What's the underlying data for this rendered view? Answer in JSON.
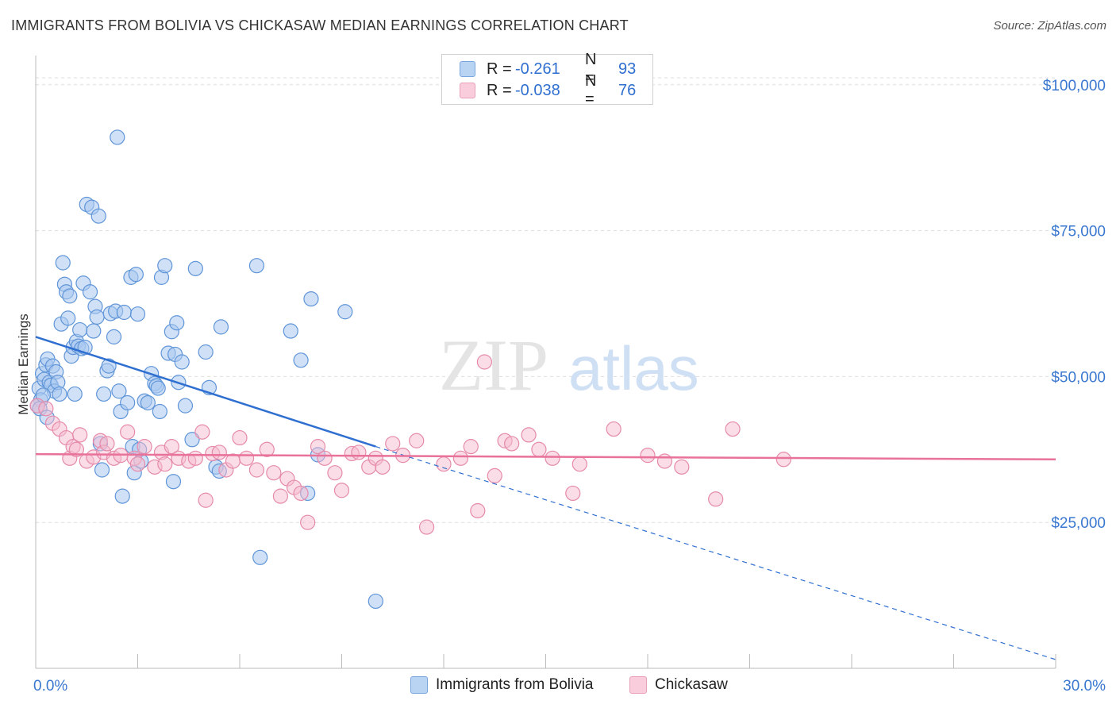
{
  "header": {
    "title": "IMMIGRANTS FROM BOLIVIA VS CHICKASAW MEDIAN EARNINGS CORRELATION CHART",
    "source": "Source: ZipAtlas.com"
  },
  "watermark": {
    "zip": "ZIP",
    "atlas": "atlas"
  },
  "legend_top": {
    "rows": [
      {
        "r_label": "R =",
        "r_value": "-0.261",
        "n_label": "N =",
        "n_value": "93"
      },
      {
        "r_label": "R =",
        "r_value": "-0.038",
        "n_label": "N =",
        "n_value": "76"
      }
    ]
  },
  "legend_bottom": {
    "items": [
      {
        "label": "Immigrants from Bolivia"
      },
      {
        "label": "Chickasaw"
      }
    ]
  },
  "colors": {
    "blue_fill": "#a9c8f0",
    "blue_stroke": "#5f95d8",
    "blue_line": "#2f6fd0",
    "pink_fill": "#f6bcd0",
    "pink_stroke": "#e58aaa",
    "pink_line": "#e8729a",
    "axis_text": "#3a78d0",
    "grid": "#dddddd"
  },
  "chart_data": {
    "type": "scatter",
    "title": "IMMIGRANTS FROM BOLIVIA VS CHICKASAW MEDIAN EARNINGS CORRELATION CHART",
    "xlabel": "",
    "ylabel": "Median Earnings",
    "xlim": [
      0,
      30
    ],
    "ylim": [
      0,
      105000
    ],
    "x_tick_labels": [
      "0.0%",
      "30.0%"
    ],
    "y_ticks": [
      25000,
      50000,
      75000,
      100000
    ],
    "y_tick_labels": [
      "$25,000",
      "$50,000",
      "$75,000",
      "$100,000"
    ],
    "grid": true,
    "legend_placement": "top-center",
    "series": [
      {
        "name": "Immigrants from Bolivia",
        "r": -0.261,
        "n": 93,
        "trend": {
          "x0": 0,
          "y0": 56800,
          "x1": 10,
          "y1": 38000,
          "dashed_to_x": 30,
          "dashed_to_y": 1500
        },
        "points": [
          [
            0.1,
            48000
          ],
          [
            0.15,
            46000
          ],
          [
            0.2,
            50500
          ],
          [
            0.25,
            49500
          ],
          [
            0.3,
            52000
          ],
          [
            0.35,
            53000
          ],
          [
            0.4,
            49000
          ],
          [
            0.45,
            48500
          ],
          [
            0.5,
            51800
          ],
          [
            0.55,
            47500
          ],
          [
            0.6,
            50800
          ],
          [
            0.65,
            49000
          ],
          [
            0.7,
            47000
          ],
          [
            0.75,
            59000
          ],
          [
            0.8,
            69500
          ],
          [
            0.85,
            65800
          ],
          [
            0.9,
            64500
          ],
          [
            0.95,
            60000
          ],
          [
            1.0,
            63800
          ],
          [
            1.05,
            53500
          ],
          [
            1.1,
            55000
          ],
          [
            1.15,
            47000
          ],
          [
            1.2,
            56000
          ],
          [
            1.25,
            55200
          ],
          [
            1.3,
            58000
          ],
          [
            1.35,
            54800
          ],
          [
            1.4,
            66000
          ],
          [
            1.45,
            55000
          ],
          [
            1.5,
            79500
          ],
          [
            1.6,
            64500
          ],
          [
            1.65,
            79000
          ],
          [
            1.7,
            57800
          ],
          [
            1.75,
            62000
          ],
          [
            1.8,
            60200
          ],
          [
            1.85,
            77500
          ],
          [
            1.9,
            38500
          ],
          [
            1.95,
            34000
          ],
          [
            2.0,
            47000
          ],
          [
            2.1,
            51000
          ],
          [
            2.15,
            51800
          ],
          [
            2.2,
            60800
          ],
          [
            2.3,
            56800
          ],
          [
            2.35,
            61200
          ],
          [
            2.4,
            91000
          ],
          [
            2.45,
            47500
          ],
          [
            2.5,
            44000
          ],
          [
            2.55,
            29500
          ],
          [
            2.6,
            61000
          ],
          [
            2.7,
            45500
          ],
          [
            2.8,
            67000
          ],
          [
            2.85,
            38000
          ],
          [
            2.9,
            33500
          ],
          [
            2.95,
            67500
          ],
          [
            3.0,
            60700
          ],
          [
            3.05,
            37500
          ],
          [
            3.1,
            35500
          ],
          [
            3.2,
            45800
          ],
          [
            3.3,
            45500
          ],
          [
            3.4,
            50500
          ],
          [
            3.5,
            48800
          ],
          [
            3.55,
            48400
          ],
          [
            3.6,
            48000
          ],
          [
            3.65,
            44000
          ],
          [
            3.7,
            67000
          ],
          [
            3.8,
            69000
          ],
          [
            3.9,
            54000
          ],
          [
            4.0,
            57700
          ],
          [
            4.05,
            32000
          ],
          [
            4.1,
            53800
          ],
          [
            4.15,
            59200
          ],
          [
            4.2,
            49000
          ],
          [
            4.3,
            52500
          ],
          [
            4.4,
            45000
          ],
          [
            4.6,
            39200
          ],
          [
            4.7,
            68500
          ],
          [
            5.0,
            54200
          ],
          [
            5.1,
            48100
          ],
          [
            5.3,
            34500
          ],
          [
            5.4,
            33800
          ],
          [
            5.45,
            58500
          ],
          [
            6.5,
            69000
          ],
          [
            6.6,
            19000
          ],
          [
            7.5,
            57800
          ],
          [
            7.8,
            52800
          ],
          [
            8.0,
            30000
          ],
          [
            8.1,
            63300
          ],
          [
            8.3,
            36600
          ],
          [
            9.1,
            61100
          ],
          [
            10.0,
            11500
          ],
          [
            0.05,
            45000
          ],
          [
            0.12,
            44500
          ],
          [
            0.22,
            46800
          ],
          [
            0.33,
            43000
          ]
        ]
      },
      {
        "name": "Chickasaw",
        "r": -0.038,
        "n": 76,
        "trend": {
          "x0": 0,
          "y0": 36700,
          "x1": 30,
          "y1": 35800
        },
        "points": [
          [
            0.05,
            45000
          ],
          [
            0.3,
            44500
          ],
          [
            0.5,
            42000
          ],
          [
            0.7,
            41000
          ],
          [
            0.9,
            39500
          ],
          [
            1.0,
            36000
          ],
          [
            1.1,
            38000
          ],
          [
            1.2,
            37500
          ],
          [
            1.3,
            40000
          ],
          [
            1.5,
            35500
          ],
          [
            1.7,
            36200
          ],
          [
            1.9,
            39000
          ],
          [
            2.0,
            37000
          ],
          [
            2.1,
            38500
          ],
          [
            2.3,
            36000
          ],
          [
            2.5,
            36500
          ],
          [
            2.7,
            40500
          ],
          [
            2.9,
            36000
          ],
          [
            3.0,
            35000
          ],
          [
            3.2,
            38000
          ],
          [
            3.5,
            34500
          ],
          [
            3.7,
            37000
          ],
          [
            3.8,
            35000
          ],
          [
            4.0,
            38000
          ],
          [
            4.2,
            36000
          ],
          [
            4.5,
            35500
          ],
          [
            4.7,
            36000
          ],
          [
            4.9,
            40500
          ],
          [
            5.0,
            28800
          ],
          [
            5.2,
            36800
          ],
          [
            5.4,
            37000
          ],
          [
            5.6,
            34000
          ],
          [
            5.8,
            35500
          ],
          [
            6.0,
            39500
          ],
          [
            6.2,
            36000
          ],
          [
            6.5,
            34000
          ],
          [
            6.8,
            37500
          ],
          [
            7.0,
            33500
          ],
          [
            7.2,
            29500
          ],
          [
            7.4,
            32500
          ],
          [
            7.6,
            31000
          ],
          [
            7.8,
            30000
          ],
          [
            8.0,
            25000
          ],
          [
            8.3,
            38000
          ],
          [
            8.5,
            36000
          ],
          [
            8.8,
            33500
          ],
          [
            9.0,
            30500
          ],
          [
            9.3,
            36800
          ],
          [
            9.5,
            37000
          ],
          [
            9.8,
            34500
          ],
          [
            10.0,
            36000
          ],
          [
            10.2,
            34500
          ],
          [
            10.5,
            38500
          ],
          [
            10.8,
            36500
          ],
          [
            11.2,
            39000
          ],
          [
            11.5,
            24200
          ],
          [
            12.0,
            35000
          ],
          [
            12.5,
            36000
          ],
          [
            12.8,
            38000
          ],
          [
            13.0,
            27000
          ],
          [
            13.2,
            52500
          ],
          [
            13.5,
            33000
          ],
          [
            13.8,
            39000
          ],
          [
            14.0,
            38500
          ],
          [
            14.5,
            40000
          ],
          [
            14.8,
            37500
          ],
          [
            15.2,
            36000
          ],
          [
            15.8,
            30000
          ],
          [
            16.0,
            35000
          ],
          [
            17.0,
            41000
          ],
          [
            18.0,
            36500
          ],
          [
            18.5,
            35500
          ],
          [
            19.0,
            34500
          ],
          [
            20.0,
            29000
          ],
          [
            20.5,
            41000
          ],
          [
            22.0,
            35800
          ]
        ]
      }
    ]
  }
}
